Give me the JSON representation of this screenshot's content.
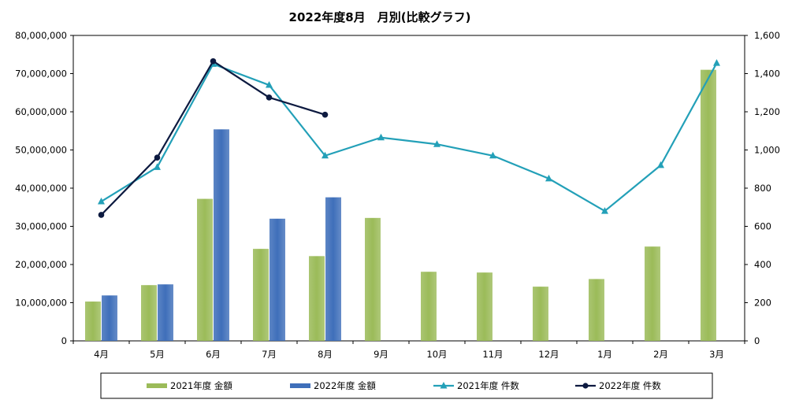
{
  "chart_data": {
    "type": "bar",
    "title": "2022年度8月　月別(比較グラフ)",
    "categories": [
      "4月",
      "5月",
      "6月",
      "7月",
      "8月",
      "9月",
      "10月",
      "11月",
      "12月",
      "1月",
      "2月",
      "3月"
    ],
    "y_left": {
      "min": 0,
      "max": 80000000,
      "step": 10000000,
      "tick_labels": [
        "0",
        "10,000,000",
        "20,000,000",
        "30,000,000",
        "40,000,000",
        "50,000,000",
        "60,000,000",
        "70,000,000",
        "80,000,000"
      ]
    },
    "y_right": {
      "min": 0,
      "max": 1600,
      "step": 200,
      "tick_labels": [
        "0",
        "200",
        "400",
        "600",
        "800",
        "1,000",
        "1,200",
        "1,400",
        "1,600"
      ]
    },
    "series": [
      {
        "name": "2021年度 金額",
        "kind": "bar",
        "axis": "left",
        "color": "#9bbb59",
        "values": [
          10300000,
          14600000,
          37200000,
          24100000,
          22200000,
          32200000,
          18100000,
          17900000,
          14200000,
          16200000,
          24700000,
          71000000
        ]
      },
      {
        "name": "2022年度 金額",
        "kind": "bar",
        "axis": "left",
        "color": "#3f6fba",
        "values": [
          11900000,
          14800000,
          55400000,
          32000000,
          37600000,
          null,
          null,
          null,
          null,
          null,
          null,
          null
        ]
      },
      {
        "name": "2021年度 件数",
        "kind": "line",
        "axis": "right",
        "color": "#23a0b8",
        "marker": "triangle",
        "values": [
          730,
          910,
          1450,
          1340,
          970,
          1065,
          1030,
          970,
          850,
          680,
          920,
          1455
        ]
      },
      {
        "name": "2022年度 件数",
        "kind": "line",
        "axis": "right",
        "color": "#0d1a40",
        "marker": "circle",
        "values": [
          660,
          960,
          1465,
          1275,
          1185,
          null,
          null,
          null,
          null,
          null,
          null,
          null
        ]
      }
    ],
    "grid": false,
    "legend_position": "bottom"
  }
}
